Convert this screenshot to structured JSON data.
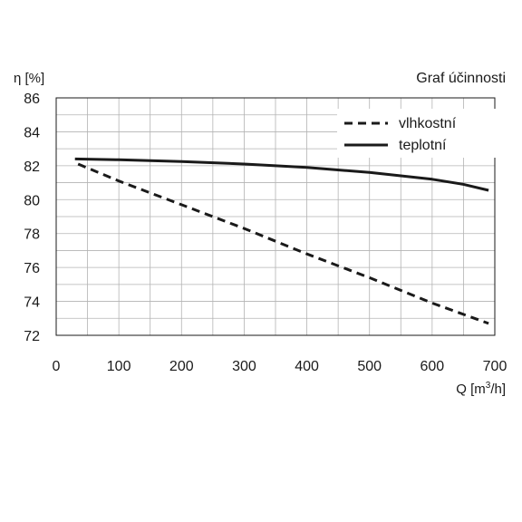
{
  "chart_data": {
    "type": "line",
    "title": "Graf účinnosti",
    "ylabel": "η [%]",
    "xlabel_main": "Q [m",
    "xlabel_sup": "3",
    "xlabel_end": "/h]",
    "xlim": [
      0,
      700
    ],
    "ylim": [
      72,
      86
    ],
    "x_ticks": [
      0,
      100,
      200,
      300,
      400,
      500,
      600,
      700
    ],
    "y_ticks": [
      72,
      74,
      76,
      78,
      80,
      82,
      84,
      86
    ],
    "x_grid": [
      0,
      50,
      100,
      150,
      200,
      250,
      300,
      350,
      400,
      450,
      500,
      550,
      600,
      650,
      700
    ],
    "y_grid": [
      72,
      73,
      74,
      75,
      76,
      77,
      78,
      79,
      80,
      81,
      82,
      83,
      84,
      85,
      86
    ],
    "grid": true,
    "legend_position": "top-right",
    "series": [
      {
        "name": "vlhkostní",
        "style": "dashed",
        "x": [
          35,
          100,
          200,
          300,
          400,
          500,
          600,
          690
        ],
        "y": [
          82.1,
          81.1,
          79.7,
          78.3,
          76.8,
          75.4,
          73.9,
          72.7
        ]
      },
      {
        "name": "teplotní",
        "style": "solid",
        "x": [
          30,
          100,
          200,
          300,
          400,
          500,
          600,
          650,
          690
        ],
        "y": [
          82.4,
          82.35,
          82.25,
          82.1,
          81.9,
          81.6,
          81.2,
          80.9,
          80.55
        ]
      }
    ]
  }
}
